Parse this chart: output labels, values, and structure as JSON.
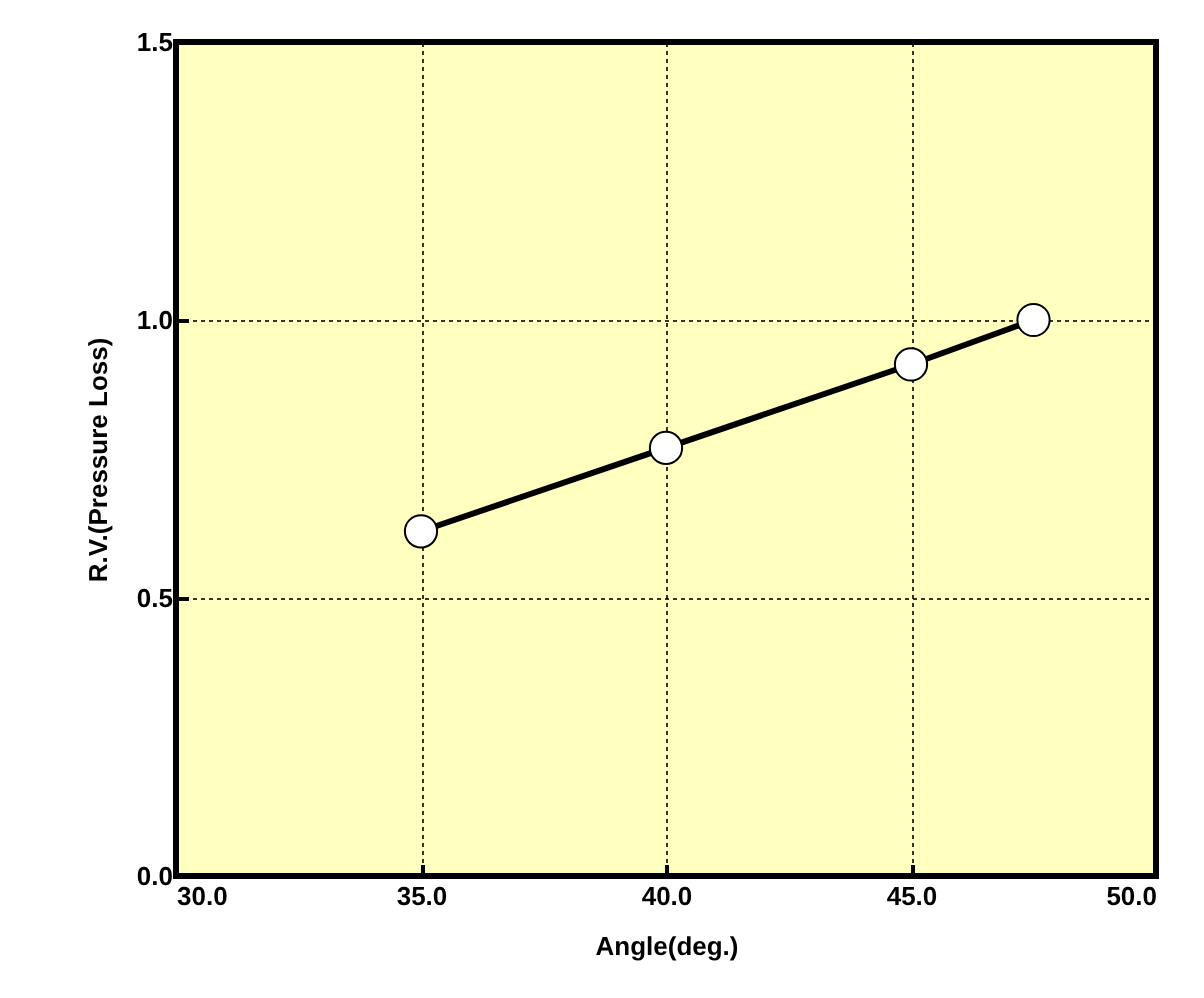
{
  "chart_data": {
    "type": "line",
    "xlabel": "Angle(deg.)",
    "ylabel": "R.V.(Pressure Loss)",
    "x": [
      35.0,
      40.0,
      45.0,
      47.5
    ],
    "series": [
      {
        "color": "#000000",
        "values": [
          0.62,
          0.77,
          0.92,
          1.0
        ]
      }
    ],
    "xlim": [
      30,
      50
    ],
    "xticks": [
      {
        "value": 30,
        "label": "30.0"
      },
      {
        "value": 35,
        "label": "35.0"
      },
      {
        "value": 40,
        "label": "40.0"
      },
      {
        "value": 45,
        "label": "45.0"
      },
      {
        "value": 50,
        "label": "50.0"
      }
    ],
    "ylim": [
      0,
      1.5
    ],
    "yticks": [
      {
        "value": 0,
        "label": "0.0"
      },
      {
        "value": 0.5,
        "label": "0.5"
      },
      {
        "value": 1,
        "label": "1.0"
      },
      {
        "value": 1.5,
        "label": "1.5"
      }
    ],
    "grid": true,
    "marker": "circle",
    "line_style": "solid"
  }
}
